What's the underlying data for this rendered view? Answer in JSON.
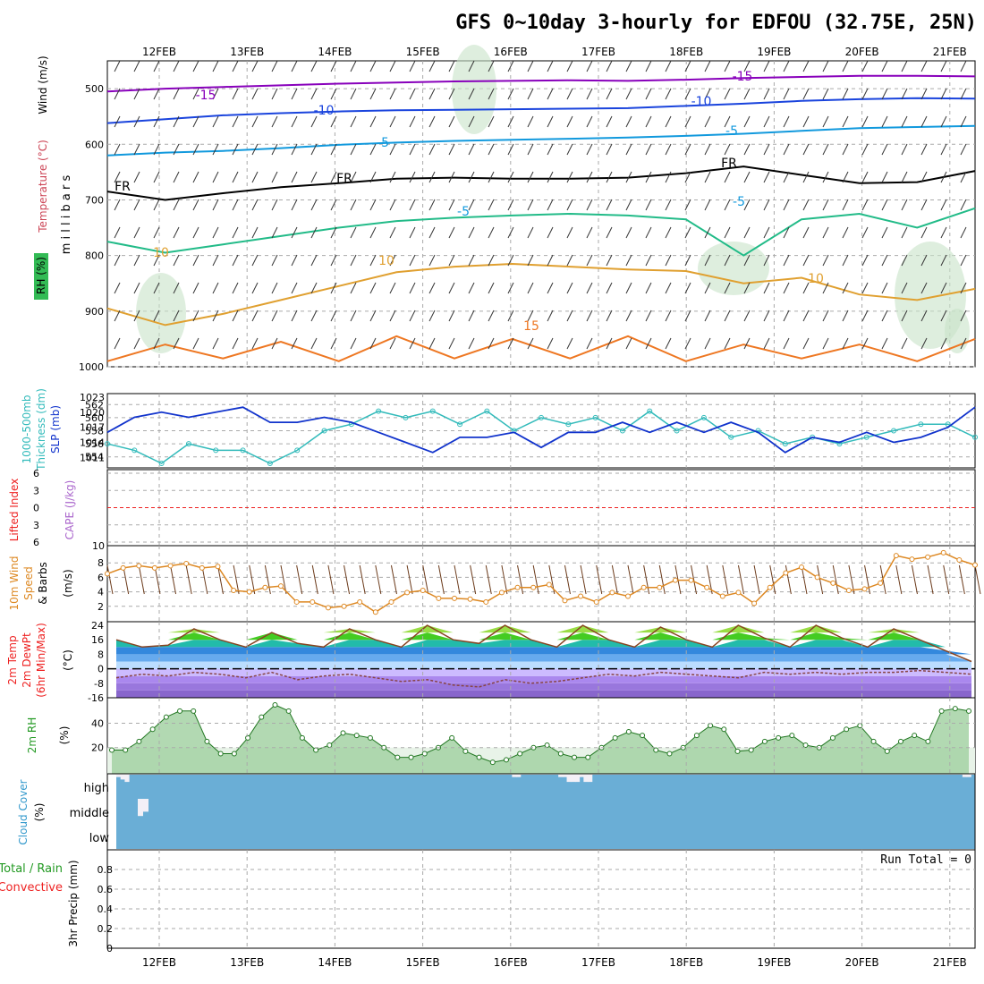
{
  "title": "GFS 0~10day 3-hourly for EDFOU (32.75E, 25N)",
  "colors": {
    "axis": "#000000",
    "grid": "#aaaaaa",
    "thickness": "#33bbbb",
    "slp": "#1133cc",
    "wind": "#dd8822",
    "barb": "#6b3a1a",
    "cloud": "#6aaed6",
    "rh_fill": "#88cc88",
    "temp_warm": "#44cc22",
    "temp_cold": "#9966dd",
    "lifted": "#ee2222"
  },
  "chart_data": [
    {
      "type": "line",
      "panel": "upper-air",
      "x_dates": [
        "12FEB",
        "13FEB",
        "14FEB",
        "15FEB",
        "16FEB",
        "17FEB",
        "18FEB",
        "19FEB",
        "20FEB",
        "21FEB"
      ],
      "ylabel": "m i l l i b a r s",
      "side_labels": [
        "RH (%)",
        "Temperature (°C)",
        "Wind (m/s)"
      ],
      "y_ticks": [
        500,
        600,
        700,
        800,
        900,
        1000
      ],
      "ylim": [
        1000,
        450
      ],
      "isotherm_labels": [
        "-15",
        "-15",
        "-10",
        "-10",
        "-5",
        "-5",
        "FR",
        "FR",
        "FR",
        "-5",
        "-5",
        "10",
        "10",
        "15",
        "10"
      ],
      "contours": [
        {
          "name": "-15",
          "color": "#8800bb",
          "p": [
            505,
            500,
            497,
            494,
            491,
            489,
            487,
            486,
            485,
            486,
            484,
            481,
            479,
            477,
            477,
            478
          ]
        },
        {
          "name": "-10",
          "color": "#1a44dd",
          "p": [
            562,
            555,
            548,
            544,
            541,
            539,
            538,
            537,
            536,
            535,
            531,
            527,
            522,
            519,
            517,
            518
          ]
        },
        {
          "name": "-5",
          "color": "#1199dd",
          "p": [
            620,
            615,
            612,
            607,
            601,
            597,
            594,
            592,
            590,
            588,
            585,
            581,
            576,
            571,
            569,
            567
          ]
        },
        {
          "name": "FR",
          "color": "#000000",
          "p": [
            685,
            700,
            688,
            677,
            670,
            662,
            660,
            662,
            662,
            660,
            652,
            640,
            655,
            670,
            668,
            648
          ]
        },
        {
          "name": "5",
          "color": "#22bb88",
          "p": [
            775,
            795,
            780,
            765,
            750,
            738,
            732,
            728,
            725,
            728,
            735,
            800,
            735,
            725,
            750,
            715
          ]
        },
        {
          "name": "10",
          "color": "#e0a030",
          "p": [
            895,
            925,
            905,
            880,
            855,
            830,
            820,
            815,
            820,
            825,
            828,
            850,
            840,
            870,
            880,
            860
          ]
        },
        {
          "name": "15",
          "color": "#ee7722",
          "p": [
            990,
            960,
            985,
            955,
            990,
            945,
            985,
            950,
            985,
            945,
            990,
            960,
            985,
            960,
            990,
            950
          ]
        }
      ]
    },
    {
      "type": "line",
      "panel": "thickness-slp",
      "ylabel": [
        "1000-500mb",
        "Thickness (dm)",
        "SLP (mb)"
      ],
      "left_ticks": [
        554,
        556,
        558,
        560,
        562
      ],
      "right_ticks": [
        1011,
        1014,
        1017,
        1020,
        1023
      ],
      "series": [
        {
          "name": "1000-500mb Thickness (dm)",
          "values": [
            556,
            555,
            553,
            556,
            555,
            555,
            553,
            555,
            558,
            559,
            561,
            560,
            561,
            559,
            561,
            558,
            560,
            559,
            560,
            558,
            561,
            558,
            560,
            557,
            558,
            556,
            557,
            556,
            557,
            558,
            559,
            559,
            557
          ]
        },
        {
          "name": "SLP (mb)",
          "values": [
            1016,
            1019,
            1020,
            1019,
            1020,
            1021,
            1018,
            1018,
            1019,
            1018,
            1016,
            1014,
            1012,
            1015,
            1015,
            1016,
            1013,
            1016,
            1016,
            1018,
            1016,
            1018,
            1016,
            1018,
            1016,
            1012,
            1015,
            1014,
            1016,
            1014,
            1015,
            1017,
            1021
          ]
        }
      ]
    },
    {
      "type": "line",
      "panel": "lifted-cape",
      "ylabel": [
        "Lifted Index",
        "CAPE (J/kg)"
      ],
      "left_ticks": [
        "6",
        "3",
        "0",
        "3",
        "6"
      ],
      "right_ticks": [
        "10"
      ],
      "series": [
        {
          "name": "Lifted Index",
          "values": [
            0
          ]
        }
      ]
    },
    {
      "type": "line",
      "panel": "wind10m",
      "ylabel": [
        "10m Wind",
        "Speed",
        "& Barbs",
        "(m/s)"
      ],
      "y_ticks": [
        2,
        4,
        6,
        8
      ],
      "series": [
        {
          "name": "10m Wind Speed",
          "values": [
            6.5,
            7.3,
            7.6,
            7.3,
            7.6,
            7.9,
            7.3,
            7.5,
            4.2,
            4.0,
            4.6,
            4.8,
            2.6,
            2.6,
            1.8,
            2.0,
            2.6,
            1.2,
            2.6,
            3.9,
            4.2,
            3.1,
            3.1,
            3.0,
            2.6,
            3.9,
            4.6,
            4.6,
            5.0,
            2.8,
            3.4,
            2.6,
            3.9,
            3.4,
            4.6,
            4.6,
            5.6,
            5.6,
            4.6,
            3.4,
            3.9,
            2.4,
            4.6,
            6.6,
            7.4,
            6.0,
            5.2,
            4.2,
            4.4,
            5.2,
            9.0,
            8.5,
            8.8,
            9.4,
            8.4,
            7.7
          ]
        }
      ]
    },
    {
      "type": "area",
      "panel": "temp2m",
      "ylabel": [
        "2m Temp",
        "2m DewPt",
        "(6hr Min/Max)",
        "(°C)"
      ],
      "y_ticks": [
        -16,
        -8,
        0,
        8,
        16,
        24
      ],
      "series": [
        {
          "name": "2m Temp",
          "values": [
            16,
            12,
            13,
            22,
            16,
            12,
            20,
            14,
            12,
            22,
            16,
            12,
            24,
            16,
            14,
            24,
            16,
            12,
            24,
            16,
            12,
            23,
            16,
            12,
            24,
            17,
            12,
            24,
            17,
            12,
            22,
            16,
            10,
            4
          ]
        },
        {
          "name": "2m DewPt",
          "values": [
            -5,
            -3,
            -4,
            -2,
            -3,
            -5,
            -2,
            -6,
            -4,
            -3,
            -5,
            -7,
            -6,
            -9,
            -10,
            -6,
            -8,
            -7,
            -5,
            -3,
            -4,
            -2,
            -3,
            -4,
            -5,
            -2,
            -3,
            -2,
            -3,
            -2,
            -2,
            -1,
            -2,
            -3
          ]
        }
      ]
    },
    {
      "type": "area",
      "panel": "rh2m",
      "ylabel": [
        "2m RH",
        "(%)"
      ],
      "y_ticks": [
        20,
        40
      ],
      "series": [
        {
          "name": "2m RH",
          "values": [
            18,
            18,
            25,
            35,
            45,
            50,
            50,
            25,
            15,
            15,
            28,
            45,
            55,
            50,
            28,
            18,
            22,
            32,
            30,
            28,
            20,
            12,
            12,
            15,
            20,
            28,
            17,
            12,
            8,
            10,
            15,
            20,
            22,
            15,
            12,
            12,
            20,
            28,
            33,
            30,
            18,
            15,
            20,
            30,
            38,
            35,
            17,
            18,
            25,
            28,
            30,
            22,
            20,
            28,
            35,
            38,
            25,
            17,
            25,
            30,
            25,
            50,
            52,
            50
          ]
        }
      ]
    },
    {
      "type": "heatmap",
      "panel": "cloud",
      "ylabel": [
        "Cloud Cover",
        "(%)"
      ],
      "y_categories": [
        "high",
        "middle",
        "low"
      ],
      "series": [
        {
          "name": "high",
          "values": [
            90,
            80,
            70,
            100,
            100,
            100,
            100,
            100,
            100,
            100,
            100,
            100,
            100,
            100,
            100,
            100,
            100,
            100,
            100,
            100,
            100,
            100,
            100,
            100,
            100,
            100,
            100,
            100,
            100,
            100,
            100,
            100,
            100,
            100,
            100,
            100,
            100,
            100,
            100,
            100,
            100,
            100,
            100,
            100,
            100,
            100,
            100,
            100,
            100,
            100,
            100,
            100,
            100,
            100,
            100,
            100,
            100,
            100,
            100,
            100,
            100,
            100,
            100,
            100,
            100,
            100,
            100,
            100,
            100,
            100,
            100,
            100,
            100,
            100,
            100,
            100,
            100,
            100,
            100,
            100,
            100,
            100,
            100,
            100,
            100,
            100,
            100,
            100,
            100,
            100,
            100,
            100,
            100,
            100,
            90,
            90,
            100,
            100,
            100,
            100,
            100,
            100,
            100,
            100,
            100,
            90,
            90,
            70,
            70,
            70,
            90,
            70,
            70,
            100,
            100,
            100,
            100,
            100,
            100,
            100,
            100,
            100,
            100,
            100,
            100,
            100,
            100,
            100,
            100,
            100,
            100,
            100,
            100,
            100,
            100,
            100,
            100,
            100,
            100,
            100,
            100,
            100,
            100,
            100,
            100,
            100,
            100,
            100,
            100,
            100,
            100,
            100,
            100,
            100,
            100,
            100,
            100,
            100,
            100,
            100,
            100,
            100,
            100,
            100,
            100,
            100,
            100,
            100,
            100,
            100,
            100,
            100,
            100,
            100,
            100,
            100,
            100,
            100,
            100,
            100,
            100,
            100,
            100,
            100,
            100,
            100,
            100,
            100,
            100,
            100,
            100,
            100,
            100,
            100,
            100,
            100,
            100,
            100,
            100,
            100,
            100,
            90,
            90,
            100
          ]
        },
        {
          "name": "middle",
          "values": [
            100,
            100,
            20,
            40,
            100
          ]
        }
      ]
    },
    {
      "type": "bar",
      "panel": "precip",
      "ylabel": [
        "Total / Rain",
        "Convective",
        "3hr Precip (mm)"
      ],
      "y_ticks": [
        "0",
        "0.2",
        "0.4",
        "0.6",
        "0.8"
      ],
      "run_total": "Run Total = 0",
      "series": [
        {
          "name": "3hr Precip (mm)",
          "values": [
            0
          ]
        }
      ]
    }
  ]
}
